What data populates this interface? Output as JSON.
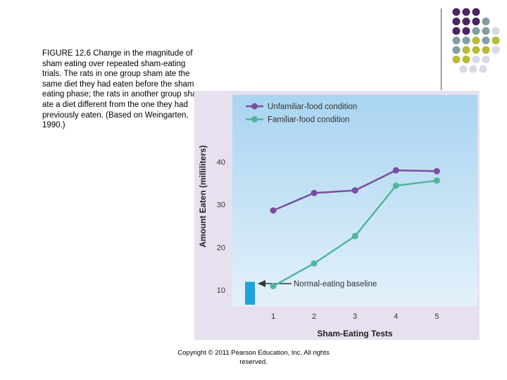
{
  "caption": "FIGURE 12.6 Change in the magnitude of sham eating over repeated sham-eating trials.  The rats in one group sham ate the same diet they had eaten before the sham eating phase; the rats in another group sham ate a diet different from the one they had previously eaten.  (Based on Weingarten, 1990.)",
  "copyright": "Copyright © 2011 Pearson Education, Inc.  All rights reserved.",
  "colors": {
    "purple": "#7a4da0",
    "teal": "#4fb69c",
    "baseline_bar": "#1ea3dc",
    "panel": "#e7e1ef",
    "plot_bg_top": "#a9d4f0",
    "plot_bg_bottom": "#e3f1fb",
    "dot_dark": "#4b2463",
    "dot_gray": "#7f9fa3",
    "dot_olive": "#b9bb34",
    "dot_light": "#d9d8e6"
  },
  "chart_data": {
    "type": "line",
    "title": "",
    "xlabel": "Sham-Eating Tests",
    "ylabel": "Amount Eaten (milliliters)",
    "categories": [
      "1",
      "2",
      "3",
      "4",
      "5"
    ],
    "x": [
      1,
      2,
      3,
      4,
      5
    ],
    "yticks": [
      10,
      20,
      30,
      40
    ],
    "ylim": [
      5,
      44
    ],
    "series": [
      {
        "name": "Unfamiliar-food condition",
        "values": [
          28.6,
          32.7,
          33.3,
          38.0,
          37.8
        ]
      },
      {
        "name": "Familiar-food condition",
        "values": [
          10.9,
          16.2,
          22.6,
          34.4,
          35.6
        ]
      }
    ],
    "baseline": {
      "label": "Normal-eating baseline",
      "value": 11.9
    },
    "legend_position": "top-left"
  }
}
